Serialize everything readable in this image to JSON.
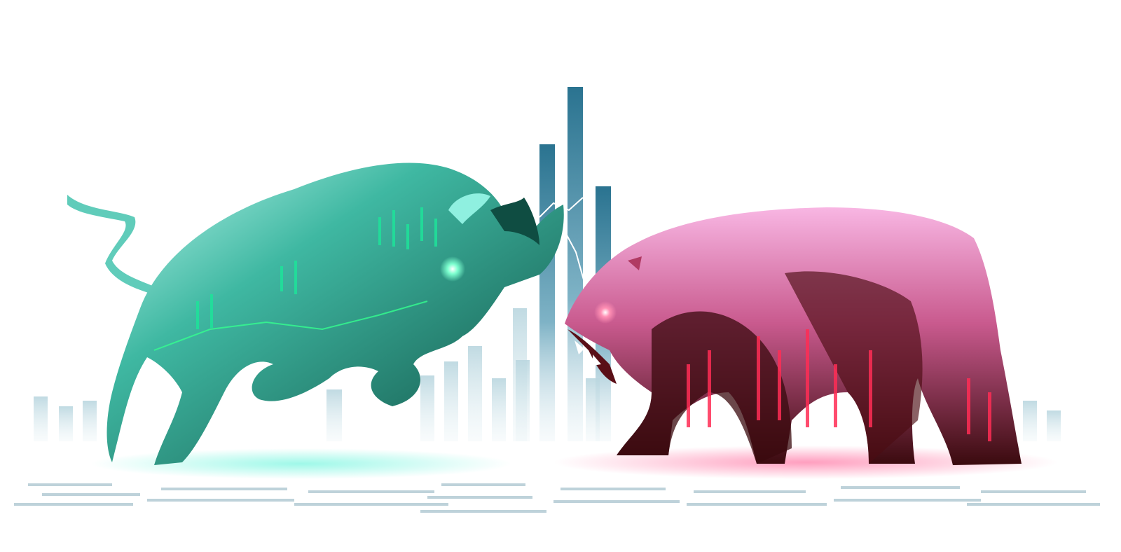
{
  "scene": {
    "subject": "bull-vs-bear-market-illustration",
    "colors": {
      "background": "#ffffff",
      "bull_dark": "#14594d",
      "bull_mid": "#1f8f7a",
      "bull_light": "#9ff3e6",
      "bull_glow": "#26ff9c",
      "bear_dark": "#3a0a0e",
      "bear_mid": "#8e1b2a",
      "bear_light": "#f7a3d9",
      "bear_glow": "#ff2d55",
      "chart_bar": "#cfe3ea",
      "chart_bar_tall": "#2f7d99"
    },
    "icons": [
      "bull-figure",
      "bear-figure",
      "background-bar-chart",
      "ground-number-grid"
    ]
  }
}
